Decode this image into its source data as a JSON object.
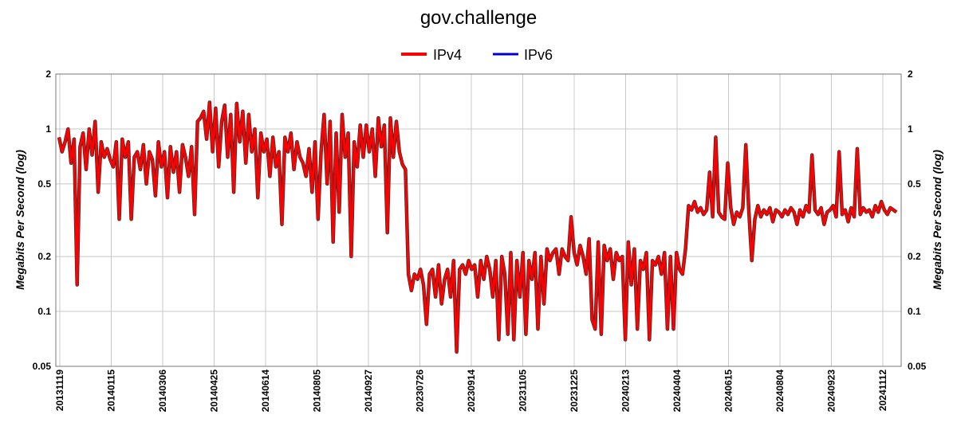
{
  "colors": {
    "ipv4": "#ff0000",
    "ipv6": "#0000cc",
    "grid": "#c8c8c8"
  },
  "chart_data": {
    "type": "line",
    "title": "gov.challenge",
    "ylabel": "Megabits Per Second (log)",
    "yscale": "log",
    "ylim": [
      0.05,
      2
    ],
    "yticks": [
      0.05,
      0.1,
      0.2,
      0.5,
      1,
      2
    ],
    "ytick_labels": [
      "0.05",
      "0.1",
      "0.2",
      "0.5",
      "1",
      "2"
    ],
    "grid": true,
    "legend_position": "top-center",
    "xtick_labels": [
      "20131119",
      "20140115",
      "20140306",
      "20140425",
      "20140614",
      "20140805",
      "20140927",
      "20230726",
      "20230914",
      "20231105",
      "20231225",
      "20240213",
      "20240404",
      "20240615",
      "20240804",
      "20240923",
      "20241112"
    ],
    "series": [
      {
        "name": "IPv4",
        "values": [
          0.9,
          0.75,
          0.85,
          1.0,
          0.65,
          0.88,
          0.14,
          0.8,
          0.95,
          0.6,
          1.0,
          0.72,
          1.1,
          0.45,
          0.85,
          0.7,
          0.78,
          0.68,
          0.62,
          0.85,
          0.32,
          0.88,
          0.7,
          0.85,
          0.32,
          0.7,
          0.75,
          0.6,
          0.82,
          0.5,
          0.75,
          0.68,
          0.43,
          0.85,
          0.62,
          0.75,
          0.42,
          0.8,
          0.58,
          0.75,
          0.45,
          0.82,
          0.7,
          0.55,
          0.8,
          0.34,
          1.1,
          1.15,
          1.25,
          0.88,
          1.4,
          0.75,
          1.3,
          0.62,
          1.1,
          1.35,
          0.7,
          1.2,
          0.45,
          1.38,
          0.85,
          1.25,
          0.65,
          1.2,
          0.75,
          1.0,
          0.42,
          0.95,
          0.75,
          0.88,
          0.55,
          0.9,
          0.62,
          0.75,
          0.3,
          0.9,
          0.75,
          0.95,
          0.6,
          0.85,
          0.7,
          0.65,
          0.55,
          0.78,
          0.45,
          0.85,
          0.32,
          0.75,
          1.2,
          0.5,
          1.1,
          0.24,
          0.95,
          0.35,
          1.2,
          0.7,
          0.95,
          0.2,
          0.85,
          0.62,
          1.05,
          0.7,
          1.05,
          0.75,
          1.0,
          0.55,
          1.15,
          0.8,
          1.05,
          0.27,
          1.15,
          0.7,
          1.1,
          0.75,
          0.64,
          0.6,
          0.16,
          0.13,
          0.16,
          0.15,
          0.17,
          0.14,
          0.085,
          0.16,
          0.17,
          0.12,
          0.18,
          0.11,
          0.15,
          0.17,
          0.12,
          0.19,
          0.06,
          0.17,
          0.18,
          0.16,
          0.19,
          0.17,
          0.18,
          0.12,
          0.19,
          0.15,
          0.2,
          0.17,
          0.12,
          0.19,
          0.07,
          0.2,
          0.16,
          0.075,
          0.21,
          0.07,
          0.19,
          0.12,
          0.21,
          0.075,
          0.19,
          0.15,
          0.21,
          0.08,
          0.2,
          0.11,
          0.22,
          0.19,
          0.21,
          0.22,
          0.16,
          0.22,
          0.2,
          0.19,
          0.33,
          0.21,
          0.18,
          0.23,
          0.2,
          0.16,
          0.25,
          0.09,
          0.08,
          0.24,
          0.075,
          0.23,
          0.19,
          0.22,
          0.15,
          0.21,
          0.19,
          0.2,
          0.07,
          0.24,
          0.14,
          0.22,
          0.08,
          0.19,
          0.17,
          0.21,
          0.07,
          0.19,
          0.18,
          0.2,
          0.16,
          0.21,
          0.08,
          0.2,
          0.08,
          0.21,
          0.17,
          0.16,
          0.22,
          0.38,
          0.36,
          0.4,
          0.35,
          0.37,
          0.34,
          0.36,
          0.58,
          0.33,
          0.9,
          0.35,
          0.33,
          0.32,
          0.65,
          0.37,
          0.3,
          0.35,
          0.33,
          0.37,
          0.82,
          0.36,
          0.19,
          0.32,
          0.38,
          0.33,
          0.36,
          0.34,
          0.37,
          0.31,
          0.36,
          0.35,
          0.33,
          0.36,
          0.34,
          0.37,
          0.35,
          0.3,
          0.36,
          0.33,
          0.38,
          0.35,
          0.72,
          0.36,
          0.34,
          0.37,
          0.3,
          0.35,
          0.36,
          0.38,
          0.33,
          0.75,
          0.34,
          0.36,
          0.31,
          0.37,
          0.33,
          0.78,
          0.34,
          0.37,
          0.35,
          0.36,
          0.33,
          0.38,
          0.35,
          0.4,
          0.36,
          0.34,
          0.37,
          0.36,
          0.35
        ]
      },
      {
        "name": "IPv6",
        "values": []
      }
    ]
  }
}
